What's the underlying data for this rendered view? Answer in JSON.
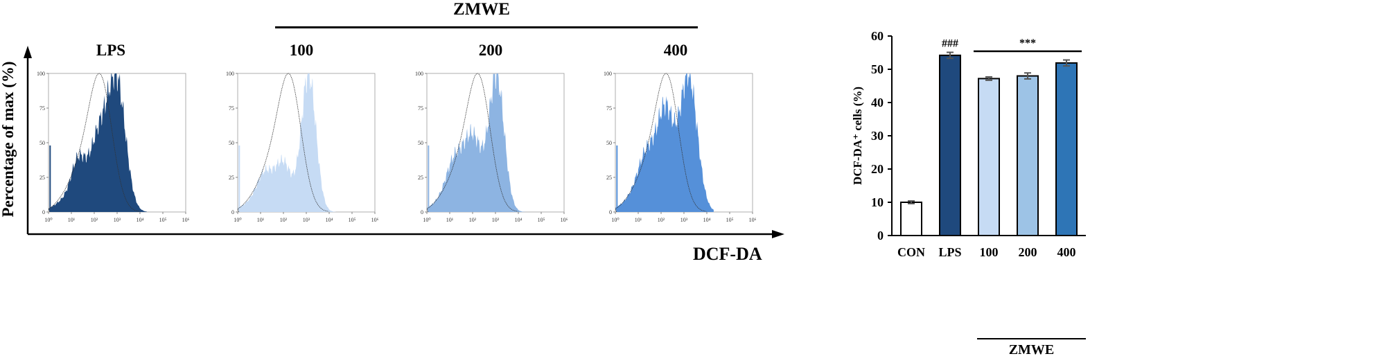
{
  "header": {
    "group_label": "ZMWE",
    "panel_labels": [
      "LPS",
      "100",
      "200",
      "400"
    ],
    "y_label": "Percentage of max (%)",
    "x_label": "DCF-DA"
  },
  "histograms": [
    {
      "name": "LPS",
      "fill": "#1f497d"
    },
    {
      "name": "100",
      "fill": "#c6dbf4"
    },
    {
      "name": "200",
      "fill": "#8db4e2"
    },
    {
      "name": "400",
      "fill": "#5590d9"
    }
  ],
  "histogram_axes": {
    "y_ticks": [
      "0",
      "25",
      "50",
      "75",
      "100"
    ],
    "x_ticks": [
      "10⁰",
      "10¹",
      "10²",
      "10³",
      "10⁴",
      "10⁵",
      "10⁶"
    ],
    "x_scale": "log"
  },
  "chart_data": {
    "type": "bar",
    "categories": [
      "CON",
      "LPS",
      "100",
      "200",
      "400"
    ],
    "values": [
      10,
      54.2,
      47.2,
      48.0,
      51.9
    ],
    "errors": [
      0.4,
      0.9,
      0.5,
      0.9,
      0.9
    ],
    "colors": [
      "#ffffff",
      "#1f497d",
      "#c6dbf4",
      "#9dc3e6",
      "#2e75b6"
    ],
    "ylabel": "DCF-DA⁺ cells (%)",
    "ylim": [
      0,
      60
    ],
    "y_ticks": [
      0,
      10,
      20,
      30,
      40,
      50,
      60
    ],
    "annotations": {
      "lps": "###",
      "zmwe": "***"
    },
    "group_label": "ZMWE"
  }
}
